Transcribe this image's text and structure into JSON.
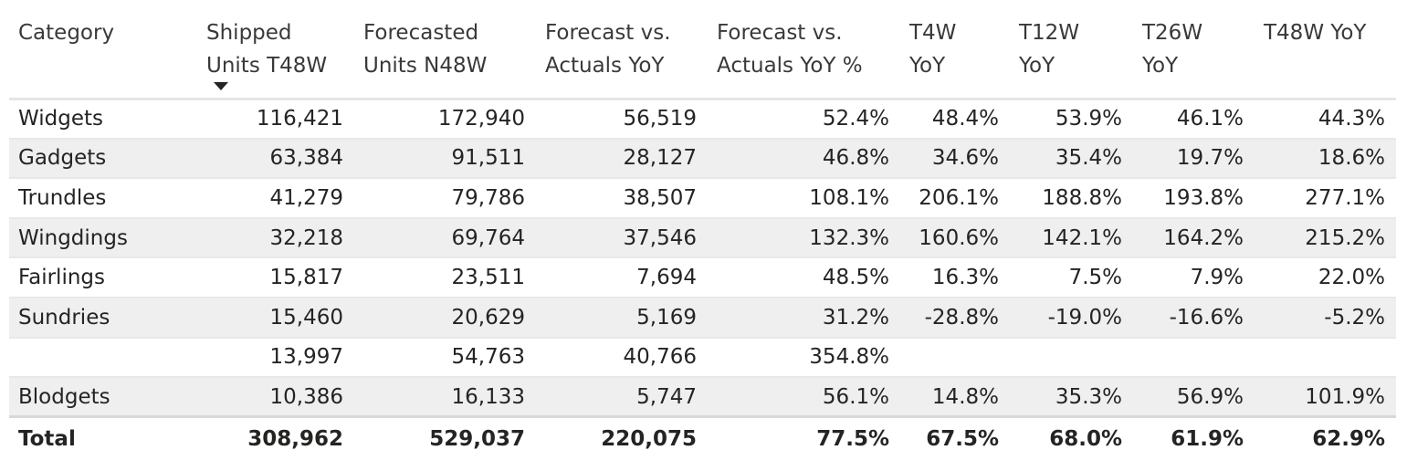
{
  "table": {
    "headers": [
      {
        "line1": "Category",
        "line2": ""
      },
      {
        "line1": "Shipped",
        "line2": "Units T48W"
      },
      {
        "line1": "Forecasted",
        "line2": "Units N48W"
      },
      {
        "line1": "Forecast vs.",
        "line2": "Actuals YoY"
      },
      {
        "line1": "Forecast vs.",
        "line2": "Actuals YoY %"
      },
      {
        "line1": "T4W",
        "line2": "YoY"
      },
      {
        "line1": "T12W",
        "line2": "YoY"
      },
      {
        "line1": "T26W",
        "line2": "YoY"
      },
      {
        "line1": "T48W YoY",
        "line2": ""
      }
    ],
    "sort_icon": "sort-descending-icon",
    "rows": [
      [
        "Widgets",
        "116,421",
        "172,940",
        "56,519",
        "52.4%",
        "48.4%",
        "53.9%",
        "46.1%",
        "44.3%"
      ],
      [
        "Gadgets",
        "63,384",
        "91,511",
        "28,127",
        "46.8%",
        "34.6%",
        "35.4%",
        "19.7%",
        "18.6%"
      ],
      [
        "Trundles",
        "41,279",
        "79,786",
        "38,507",
        "108.1%",
        "206.1%",
        "188.8%",
        "193.8%",
        "277.1%"
      ],
      [
        "Wingdings",
        "32,218",
        "69,764",
        "37,546",
        "132.3%",
        "160.6%",
        "142.1%",
        "164.2%",
        "215.2%"
      ],
      [
        "Fairlings",
        "15,817",
        "23,511",
        "7,694",
        "48.5%",
        "16.3%",
        "7.5%",
        "7.9%",
        "22.0%"
      ],
      [
        "Sundries",
        "15,460",
        "20,629",
        "5,169",
        "31.2%",
        "-28.8%",
        "-19.0%",
        "-16.6%",
        "-5.2%"
      ],
      [
        "",
        "13,997",
        "54,763",
        "40,766",
        "354.8%",
        "",
        "",
        "",
        ""
      ],
      [
        "Blodgets",
        "10,386",
        "16,133",
        "5,747",
        "56.1%",
        "14.8%",
        "35.3%",
        "56.9%",
        "101.9%"
      ]
    ],
    "total": [
      "Total",
      "308,962",
      "529,037",
      "220,075",
      "77.5%",
      "67.5%",
      "68.0%",
      "61.9%",
      "62.9%"
    ]
  }
}
